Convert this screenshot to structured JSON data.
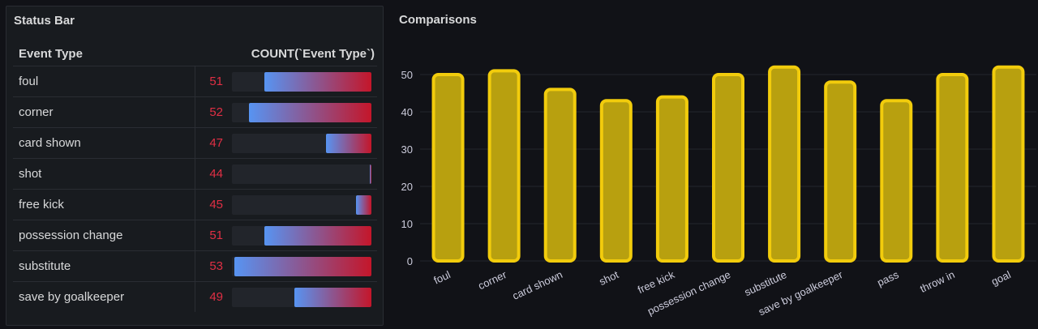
{
  "left_panel": {
    "title": "Status Bar",
    "columns": {
      "type": "Event Type",
      "count": "COUNT(`Event Type`)"
    },
    "rows": [
      {
        "type": "foul",
        "count": "51",
        "fraction": 0.765
      },
      {
        "type": "corner",
        "count": "52",
        "fraction": 0.88
      },
      {
        "type": "card shown",
        "count": "47",
        "fraction": 0.325
      },
      {
        "type": "shot",
        "count": "44",
        "fraction": 0.01
      },
      {
        "type": "free kick",
        "count": "45",
        "fraction": 0.11
      },
      {
        "type": "possession change",
        "count": "51",
        "fraction": 0.765
      },
      {
        "type": "substitute",
        "count": "53",
        "fraction": 0.98
      },
      {
        "type": "save by goalkeeper",
        "count": "49",
        "fraction": 0.55
      }
    ],
    "colors": {
      "count_text": "#e02f44",
      "gauge_start": "#5794f2",
      "gauge_end": "#c4162a"
    }
  },
  "right_panel": {
    "title": "Comparisons"
  },
  "chart_data": {
    "type": "bar",
    "categories": [
      "foul",
      "corner",
      "card shown",
      "shot",
      "free kick",
      "possession change",
      "substitute",
      "save by goalkeeper",
      "pass",
      "throw in",
      "goal"
    ],
    "values": [
      50,
      51,
      46,
      43,
      44,
      50,
      52,
      48,
      43,
      50,
      52
    ],
    "ylim": [
      0,
      55
    ],
    "yticks": [
      0,
      10,
      20,
      30,
      40,
      50
    ],
    "grid": true,
    "colors": {
      "bar_fill": "#b8a00f",
      "bar_stroke": "#f2cc0c"
    }
  }
}
